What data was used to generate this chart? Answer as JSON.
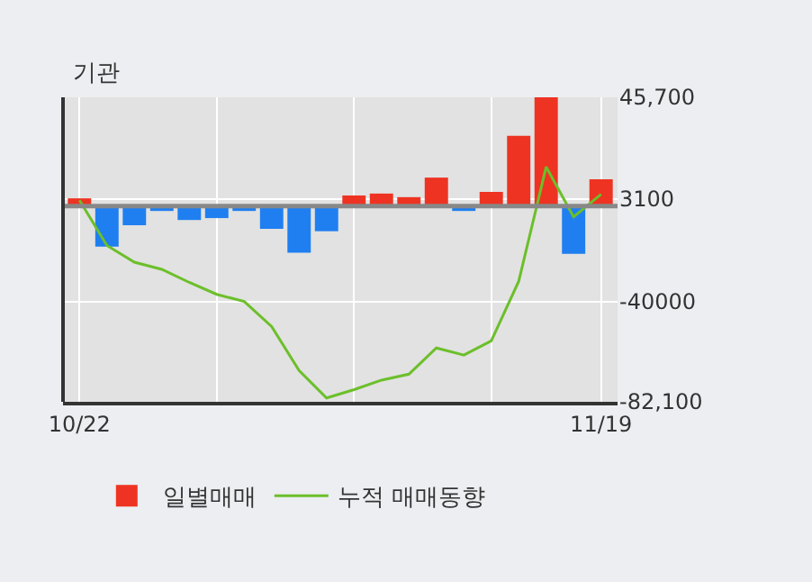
{
  "chart_data": {
    "type": "bar",
    "title": "기관",
    "categories": [
      "10/22",
      null,
      null,
      null,
      null,
      null,
      null,
      null,
      null,
      null,
      null,
      null,
      null,
      null,
      null,
      null,
      null,
      null,
      null,
      "11/19"
    ],
    "series": [
      {
        "name": "일별매매",
        "colors": [
          "#ee3322",
          "#1f7ff0",
          "#1f7ff0",
          "#1f7ff0",
          "#1f7ff0",
          "#1f7ff0",
          "#1f7ff0",
          "#1f7ff0",
          "#1f7ff0",
          "#1f7ff0",
          "#ee3322",
          "#ee3322",
          "#ee3322",
          "#ee3322",
          "#1f7ff0",
          "#ee3322",
          "#ee3322",
          "#ee3322",
          "#1f7ff0",
          "#ee3322"
        ],
        "values": [
          3300,
          -17000,
          -8000,
          -2000,
          -5800,
          -5000,
          -2000,
          -9500,
          -19500,
          -10500,
          4500,
          5300,
          3800,
          12000,
          -2000,
          6000,
          29500,
          45700,
          -20000,
          11300
        ]
      },
      {
        "name": "누적 매매동향",
        "type": "line",
        "color": "#6cbf2a",
        "values": [
          2500,
          -16500,
          -23500,
          -26500,
          -32000,
          -37000,
          -40000,
          -50500,
          -69000,
          -80500,
          -77000,
          -73000,
          -70500,
          -59500,
          -62500,
          -56500,
          -31500,
          16500,
          -4500,
          5000
        ]
      }
    ],
    "ylim": [
      -82100,
      45700
    ],
    "yticks": [
      {
        "value": 45700,
        "label": "45,700"
      },
      3100,
      -40000,
      {
        "value": -82100,
        "label": "-82,100"
      }
    ],
    "ref_lines": [
      {
        "axis": "y",
        "value": 0,
        "color": "#888888"
      }
    ],
    "grid": true,
    "legend": "bottom"
  }
}
